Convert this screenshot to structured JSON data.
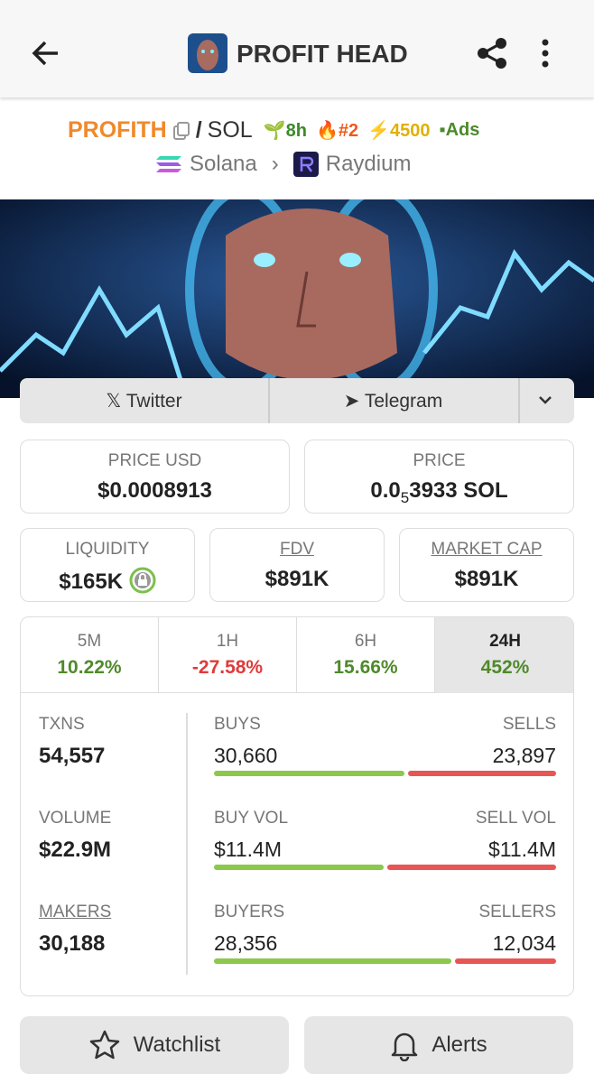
{
  "header": {
    "title": "PROFIT HEAD"
  },
  "pair": {
    "base": "PROFITH",
    "separator": "/",
    "quote": "SOL",
    "age": "8h",
    "rank": "#2",
    "boosts": "4500",
    "ads": "Ads",
    "chain": "Solana",
    "dex": "Raydium"
  },
  "links": {
    "twitter": "Twitter",
    "telegram": "Telegram"
  },
  "price_usd": {
    "label": "PRICE USD",
    "value": "$0.0008913"
  },
  "price": {
    "label": "PRICE",
    "prefix": "0.0",
    "zeros": "5",
    "value": "3933 SOL"
  },
  "liquidity": {
    "label": "LIQUIDITY",
    "value": "$165K"
  },
  "fdv": {
    "label": "FDV",
    "value": "$891K"
  },
  "market_cap": {
    "label": "MARKET CAP",
    "value": "$891K"
  },
  "timeframes": [
    {
      "label": "5M",
      "change": "10.22%"
    },
    {
      "label": "1H",
      "change": "-27.58%"
    },
    {
      "label": "6H",
      "change": "15.66%"
    },
    {
      "label": "24H",
      "change": "452%"
    }
  ],
  "stats": [
    {
      "label": "TXNS",
      "value": "54,557",
      "left_label": "BUYS",
      "left": "30,660",
      "right_label": "SELLS",
      "right": "23,897"
    },
    {
      "label": "VOLUME",
      "value": "$22.9M",
      "left_label": "BUY VOL",
      "left": "$11.4M",
      "right_label": "SELL VOL",
      "right": "$11.4M"
    },
    {
      "label": "MAKERS",
      "value": "30,188",
      "left_label": "BUYERS",
      "left": "28,356",
      "right_label": "SELLERS",
      "right": "12,034"
    }
  ],
  "buttons": {
    "watchlist": "Watchlist",
    "alerts": "Alerts"
  }
}
